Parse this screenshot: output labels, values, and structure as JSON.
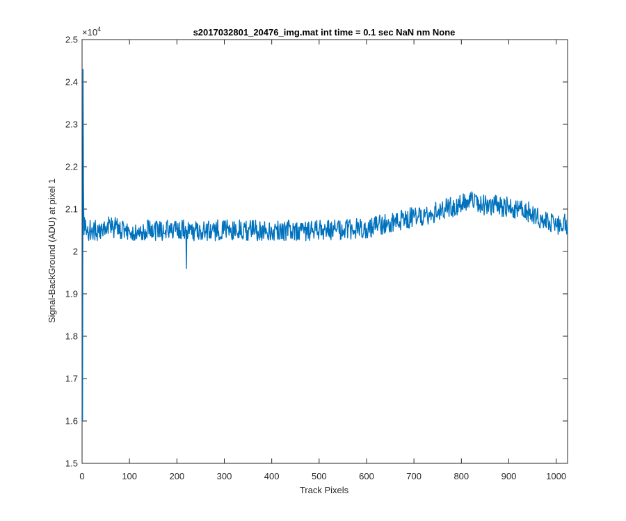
{
  "chart_data": {
    "type": "line",
    "title": "s2017032801_20476_img.mat int time = 0.1 sec  NaN nm None",
    "xlabel": "Track Pixels",
    "ylabel": "Signal-BackGround (ADU) at pixel 1",
    "y_exponent_base": "×10",
    "y_exponent": "4",
    "xlim": [
      0,
      1024
    ],
    "ylim": [
      1.5,
      2.5
    ],
    "x_ticks": [
      0,
      100,
      200,
      300,
      400,
      500,
      600,
      700,
      800,
      900,
      1000
    ],
    "y_ticks": [
      1.5,
      1.6,
      1.7,
      1.8,
      1.9,
      2.0,
      2.1,
      2.2,
      2.3,
      2.4,
      2.5
    ],
    "x_tick_labels": [
      "0",
      "100",
      "200",
      "300",
      "400",
      "500",
      "600",
      "700",
      "800",
      "900",
      "1000"
    ],
    "y_tick_labels": [
      "1.5",
      "1.6",
      "1.7",
      "1.8",
      "1.9",
      "2",
      "2.1",
      "2.2",
      "2.3",
      "2.4",
      "2.5"
    ],
    "grid": false,
    "series": [
      {
        "color": "#0072bd",
        "x": [
          1,
          2,
          3,
          4,
          5,
          6,
          8,
          10,
          20,
          40,
          50,
          100,
          200,
          219,
          220,
          221,
          250,
          300,
          400,
          500,
          550,
          600,
          650,
          700,
          750,
          800,
          820,
          850,
          900,
          950,
          1000,
          1024
        ],
        "y": [
          1.6,
          2.43,
          2.15,
          2.04,
          2.08,
          2.05,
          2.06,
          2.05,
          2.05,
          2.05,
          2.06,
          2.05,
          2.05,
          2.05,
          1.96,
          2.05,
          2.05,
          2.05,
          2.05,
          2.05,
          2.05,
          2.055,
          2.07,
          2.08,
          2.095,
          2.11,
          2.12,
          2.11,
          2.105,
          2.09,
          2.06,
          2.065
        ]
      }
    ]
  }
}
